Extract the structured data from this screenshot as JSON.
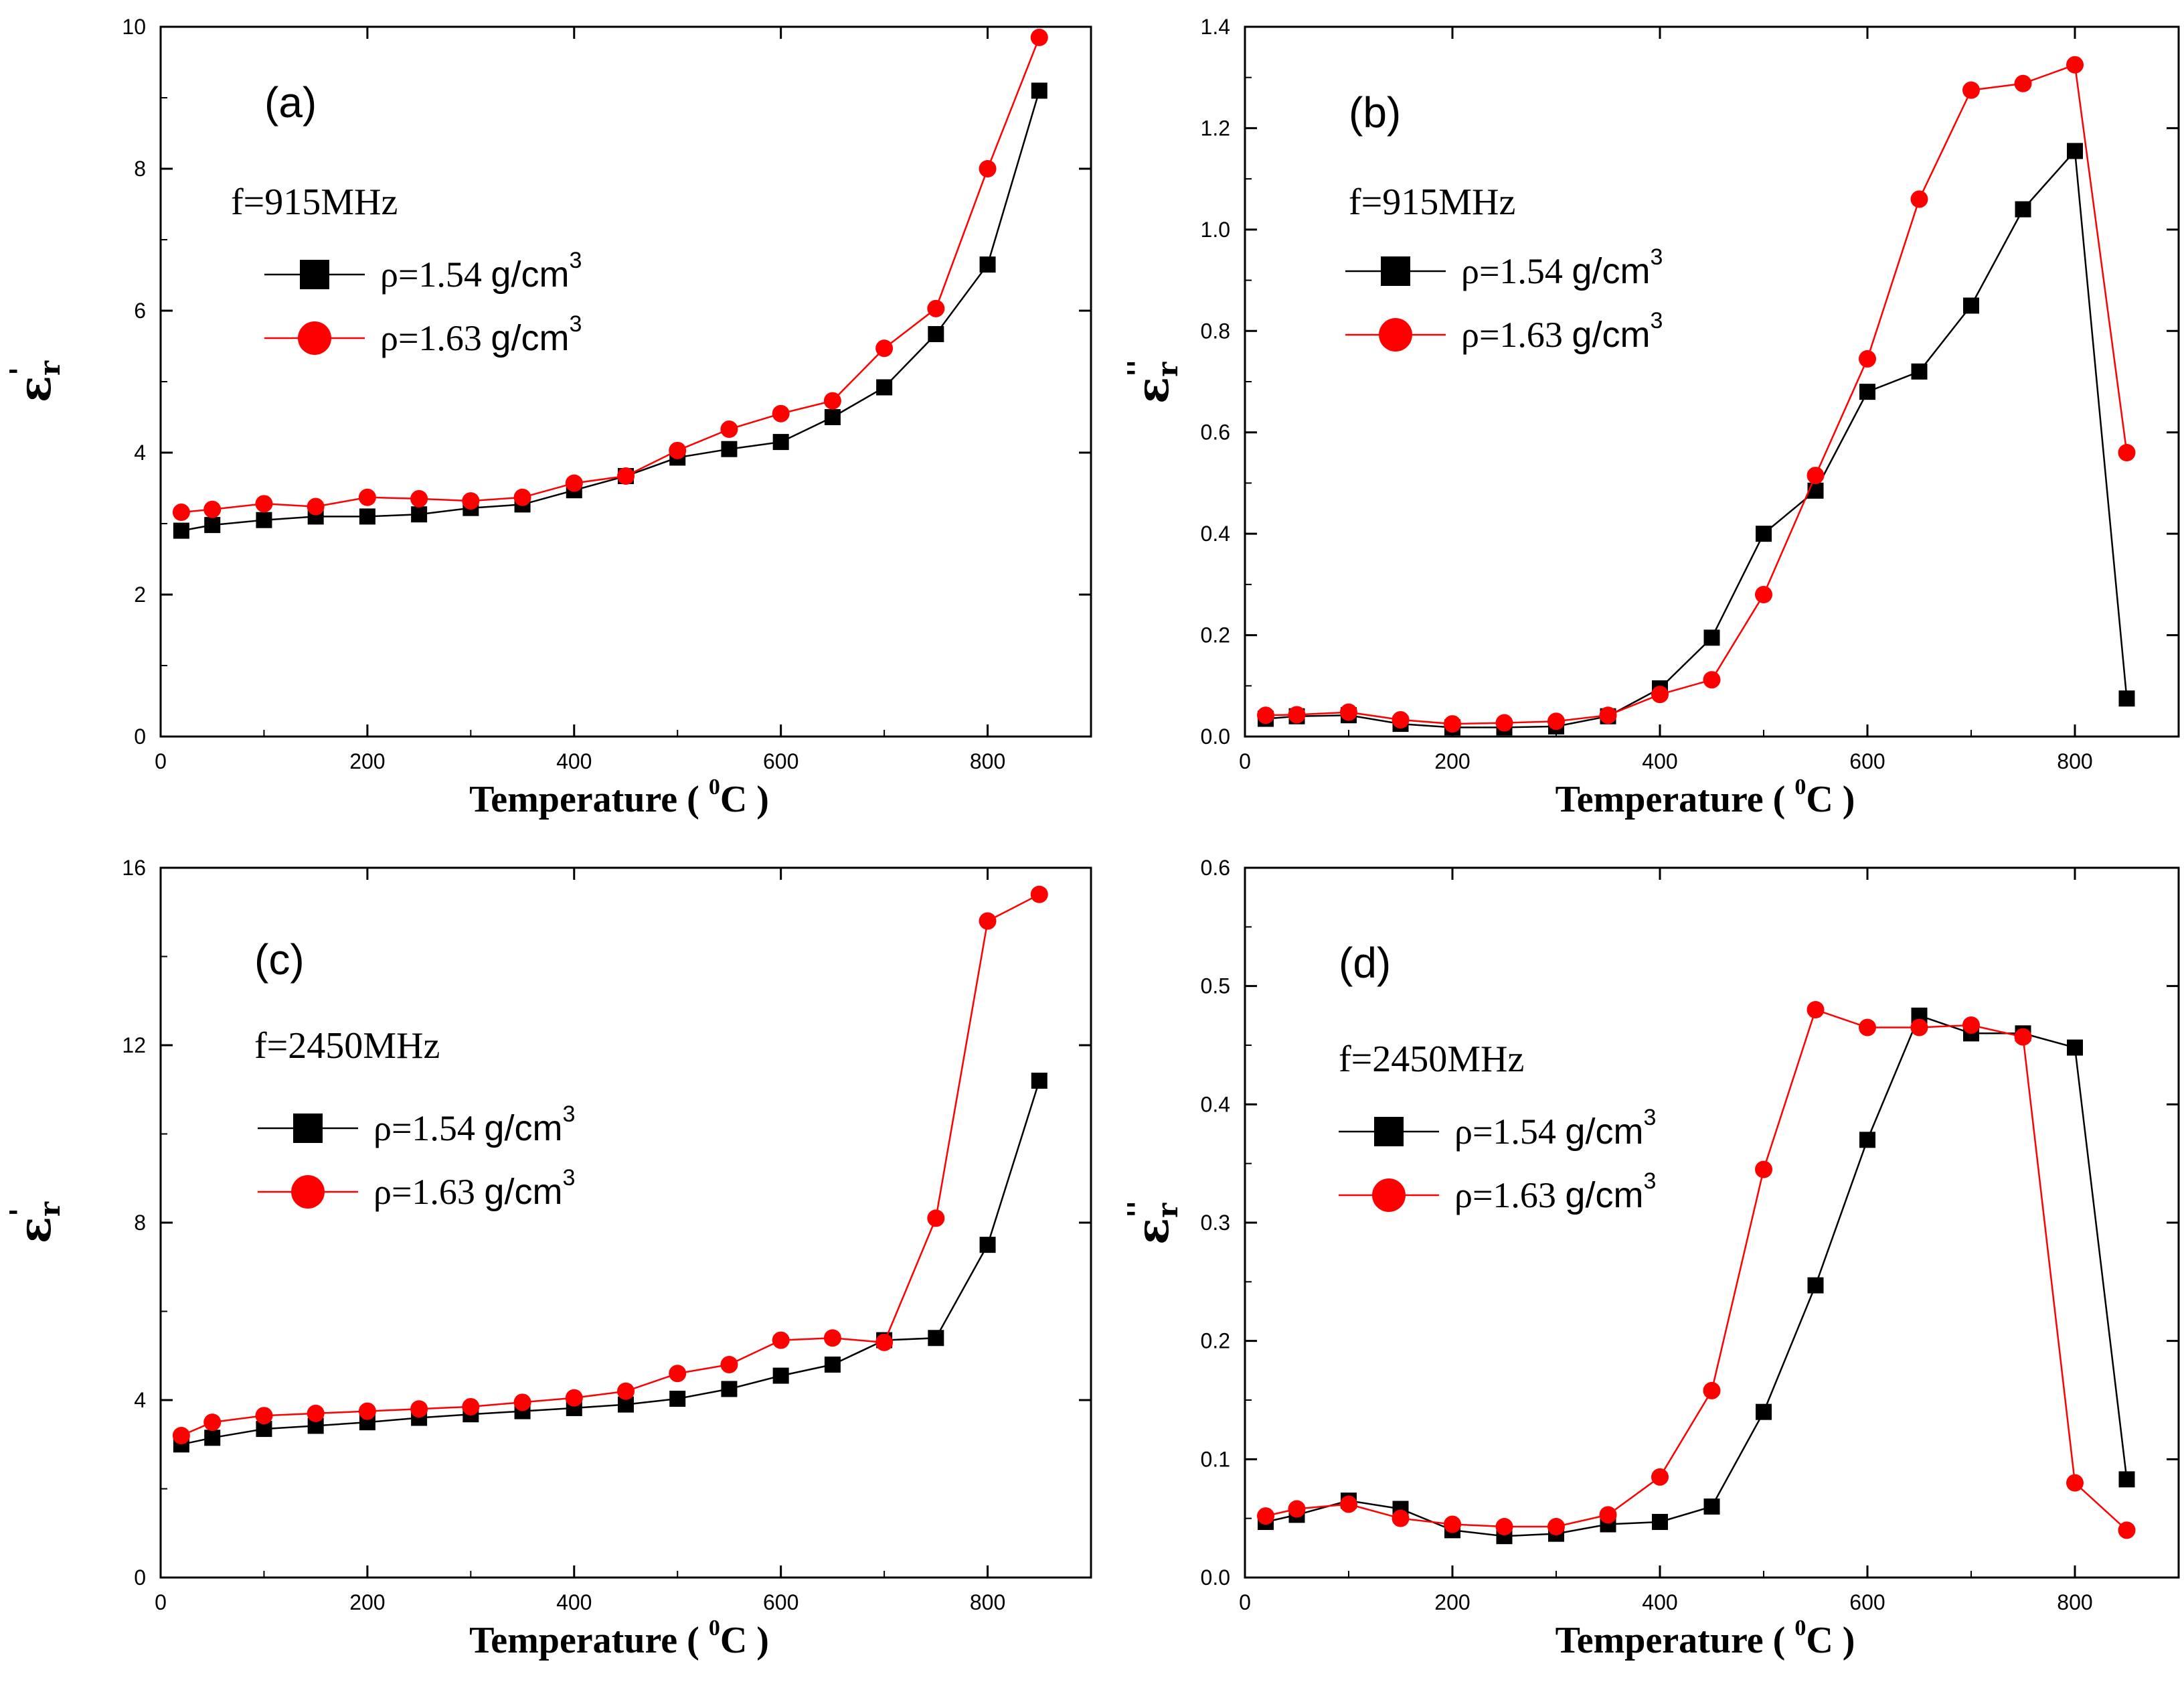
{
  "chart_data": [
    {
      "type": "line",
      "panel_label": "(a)",
      "frequency_label": "f=915MHz",
      "xlabel": "Temperature ( ⁰C )",
      "xlabel_parts": [
        "Temperature ( ",
        "0",
        "C )"
      ],
      "ylabel": "ε'r",
      "ylabel_parts": [
        "ε",
        "r",
        "'"
      ],
      "xlim": [
        0,
        900
      ],
      "ylim": [
        0,
        10
      ],
      "xticks": [
        0,
        200,
        400,
        600,
        800
      ],
      "yticks": [
        0,
        2,
        4,
        6,
        8,
        10
      ],
      "xtick_labels": [
        "0",
        "200",
        "400",
        "600",
        "800"
      ],
      "ytick_labels": [
        "0",
        "2",
        "4",
        "6",
        "8",
        "10"
      ],
      "x": [
        20,
        50,
        100,
        150,
        200,
        250,
        300,
        350,
        400,
        450,
        500,
        550,
        600,
        650,
        700,
        750,
        800,
        850
      ],
      "series": [
        {
          "name": "ρ=1.54 g/cm3",
          "legend_parts": [
            "ρ=1.54 ",
            "g/cm",
            "3"
          ],
          "marker": "square",
          "color": "#000000",
          "values": [
            2.9,
            2.98,
            3.05,
            3.1,
            3.1,
            3.13,
            3.22,
            3.27,
            3.47,
            3.67,
            3.93,
            4.05,
            4.15,
            4.5,
            4.92,
            5.67,
            6.65,
            9.1
          ]
        },
        {
          "name": "ρ=1.63 g/cm3",
          "legend_parts": [
            "ρ=1.63 ",
            "g/cm",
            "3"
          ],
          "marker": "circle",
          "color": "#ff0000",
          "values": [
            3.16,
            3.2,
            3.28,
            3.24,
            3.37,
            3.35,
            3.32,
            3.37,
            3.57,
            3.67,
            4.03,
            4.33,
            4.55,
            4.73,
            5.47,
            6.03,
            8.0,
            9.85
          ]
        }
      ]
    },
    {
      "type": "line",
      "panel_label": "(b)",
      "frequency_label": "f=915MHz",
      "xlabel": "Temperature ( ⁰C )",
      "xlabel_parts": [
        "Temperature ( ",
        "0",
        "C )"
      ],
      "ylabel": "ε''r",
      "ylabel_parts": [
        "ε",
        "r",
        "''"
      ],
      "xlim": [
        0,
        900
      ],
      "ylim": [
        0,
        1.4
      ],
      "xticks": [
        0,
        200,
        400,
        600,
        800
      ],
      "yticks": [
        0.0,
        0.2,
        0.4,
        0.6,
        0.8,
        1.0,
        1.2,
        1.4
      ],
      "xtick_labels": [
        "0",
        "200",
        "400",
        "600",
        "800"
      ],
      "ytick_labels": [
        "0.0",
        "0.2",
        "0.4",
        "0.6",
        "0.8",
        "1.0",
        "1.2",
        "1.4"
      ],
      "x": [
        20,
        50,
        100,
        150,
        200,
        250,
        300,
        350,
        400,
        450,
        500,
        550,
        600,
        650,
        700,
        750,
        800,
        850
      ],
      "series": [
        {
          "name": "ρ=1.54 g/cm3",
          "legend_parts": [
            "ρ=1.54 ",
            "g/cm",
            "3"
          ],
          "marker": "square",
          "color": "#000000",
          "values": [
            0.035,
            0.04,
            0.042,
            0.025,
            0.018,
            0.018,
            0.02,
            0.04,
            0.095,
            0.195,
            0.4,
            0.485,
            0.68,
            0.72,
            0.85,
            1.04,
            1.155,
            0.075
          ]
        },
        {
          "name": "ρ=1.63 g/cm3",
          "legend_parts": [
            "ρ=1.63 ",
            "g/cm",
            "3"
          ],
          "marker": "circle",
          "color": "#ff0000",
          "values": [
            0.042,
            0.043,
            0.048,
            0.033,
            0.025,
            0.027,
            0.03,
            0.042,
            0.083,
            0.112,
            0.28,
            0.515,
            0.745,
            1.06,
            1.275,
            1.288,
            1.325,
            0.56
          ]
        }
      ]
    },
    {
      "type": "line",
      "panel_label": "(c)",
      "frequency_label": "f=2450MHz",
      "xlabel": "Temperature ( ⁰C )",
      "xlabel_parts": [
        "Temperature ( ",
        "0",
        "C )"
      ],
      "ylabel": "ε'r",
      "ylabel_parts": [
        "ε",
        "r",
        "'"
      ],
      "xlim": [
        0,
        900
      ],
      "ylim": [
        0,
        16
      ],
      "xticks": [
        0,
        200,
        400,
        600,
        800
      ],
      "yticks": [
        0,
        4,
        8,
        12,
        16
      ],
      "xtick_labels": [
        "0",
        "200",
        "400",
        "600",
        "800"
      ],
      "ytick_labels": [
        "0",
        "4",
        "8",
        "12",
        "16"
      ],
      "x": [
        20,
        50,
        100,
        150,
        200,
        250,
        300,
        350,
        400,
        450,
        500,
        550,
        600,
        650,
        700,
        750,
        800,
        850
      ],
      "series": [
        {
          "name": "ρ=1.54 g/cm3",
          "legend_parts": [
            "ρ=1.54 ",
            "g/cm",
            "3"
          ],
          "marker": "square",
          "color": "#000000",
          "values": [
            3.0,
            3.15,
            3.35,
            3.42,
            3.5,
            3.6,
            3.68,
            3.75,
            3.82,
            3.9,
            4.03,
            4.25,
            4.55,
            4.8,
            5.35,
            5.4,
            7.5,
            11.2
          ]
        },
        {
          "name": "ρ=1.63 g/cm3",
          "legend_parts": [
            "ρ=1.63 ",
            "g/cm",
            "3"
          ],
          "marker": "circle",
          "color": "#ff0000",
          "values": [
            3.2,
            3.5,
            3.65,
            3.7,
            3.75,
            3.8,
            3.85,
            3.95,
            4.05,
            4.2,
            4.6,
            4.8,
            5.35,
            5.4,
            5.3,
            8.1,
            14.8,
            15.4
          ]
        }
      ]
    },
    {
      "type": "line",
      "panel_label": "(d)",
      "frequency_label": "f=2450MHz",
      "xlabel": "Temperature ( ⁰C )",
      "xlabel_parts": [
        "Temperature ( ",
        "0",
        "C )"
      ],
      "ylabel": "ε''r",
      "ylabel_parts": [
        "ε",
        "r",
        "''"
      ],
      "xlim": [
        0,
        900
      ],
      "ylim": [
        0,
        0.6
      ],
      "xticks": [
        0,
        200,
        400,
        600,
        800
      ],
      "yticks": [
        0.0,
        0.1,
        0.2,
        0.3,
        0.4,
        0.5,
        0.6
      ],
      "xtick_labels": [
        "0",
        "200",
        "400",
        "600",
        "800"
      ],
      "ytick_labels": [
        "0.0",
        "0.1",
        "0.2",
        "0.3",
        "0.4",
        "0.5",
        "0.6"
      ],
      "x": [
        20,
        50,
        100,
        150,
        200,
        250,
        300,
        350,
        400,
        450,
        500,
        550,
        600,
        650,
        700,
        750,
        800,
        850
      ],
      "series": [
        {
          "name": "ρ=1.54 g/cm3",
          "legend_parts": [
            "ρ=1.54 ",
            "g/cm",
            "3"
          ],
          "marker": "square",
          "color": "#000000",
          "values": [
            0.047,
            0.053,
            0.065,
            0.058,
            0.04,
            0.035,
            0.037,
            0.045,
            0.047,
            0.06,
            0.14,
            0.247,
            0.37,
            0.475,
            0.46,
            0.46,
            0.448,
            0.083
          ]
        },
        {
          "name": "ρ=1.63 g/cm3",
          "legend_parts": [
            "ρ=1.63 ",
            "g/cm",
            "3"
          ],
          "marker": "circle",
          "color": "#ff0000",
          "values": [
            0.052,
            0.058,
            0.062,
            0.05,
            0.045,
            0.043,
            0.043,
            0.053,
            0.085,
            0.158,
            0.345,
            0.48,
            0.465,
            0.465,
            0.467,
            0.457,
            0.08,
            0.04
          ]
        }
      ]
    }
  ]
}
